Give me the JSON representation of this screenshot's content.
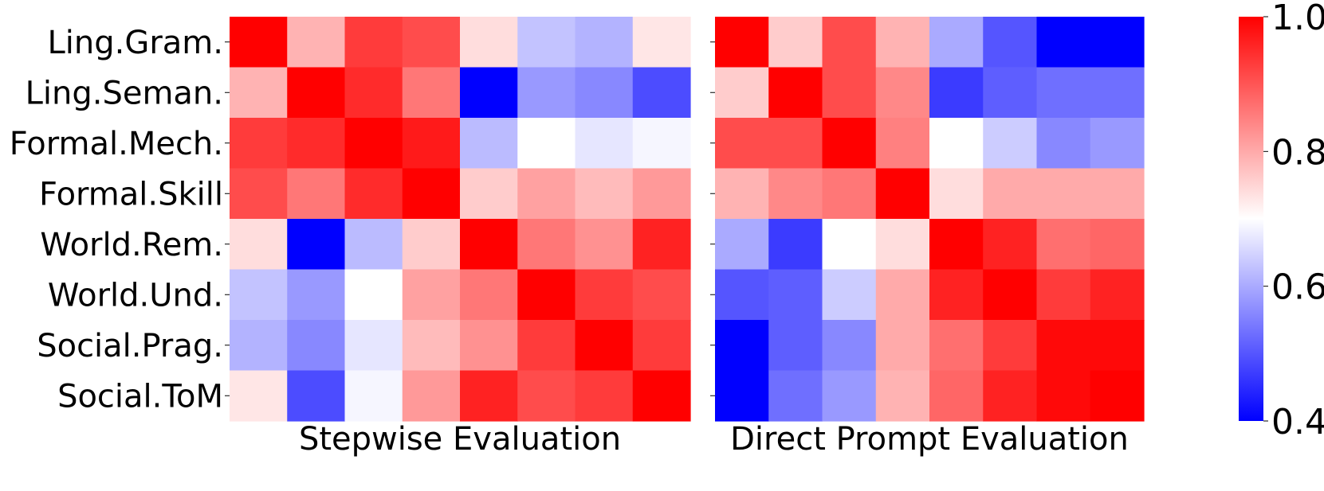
{
  "chart_data": [
    {
      "type": "heatmap",
      "title": "",
      "xlabel": "Stepwise Evaluation",
      "ylabel": "",
      "row_labels": [
        "Ling.Gram.",
        "Ling.Seman.",
        "Formal.Mech.",
        "Formal.Skill",
        "World.Rem.",
        "World.Und.",
        "Social.Prag.",
        "Social.ToM"
      ],
      "col_labels": [],
      "colormap": "bwr",
      "vmin": 0.4,
      "vmax": 1.0,
      "values": [
        [
          1.0,
          0.79,
          0.93,
          0.91,
          0.74,
          0.63,
          0.61,
          0.73
        ],
        [
          0.79,
          1.0,
          0.95,
          0.86,
          0.4,
          0.58,
          0.56,
          0.49
        ],
        [
          0.93,
          0.95,
          1.0,
          0.97,
          0.62,
          0.7,
          0.67,
          0.69
        ],
        [
          0.91,
          0.86,
          0.95,
          1.0,
          0.76,
          0.81,
          0.78,
          0.82
        ],
        [
          0.74,
          0.4,
          0.62,
          0.76,
          1.0,
          0.86,
          0.83,
          0.96
        ],
        [
          0.63,
          0.58,
          0.7,
          0.81,
          0.86,
          1.0,
          0.93,
          0.91
        ],
        [
          0.61,
          0.56,
          0.67,
          0.78,
          0.83,
          0.93,
          1.0,
          0.93
        ],
        [
          0.73,
          0.49,
          0.69,
          0.82,
          0.96,
          0.91,
          0.93,
          1.0
        ]
      ]
    },
    {
      "type": "heatmap",
      "title": "",
      "xlabel": "Direct Prompt Evaluation",
      "ylabel": "",
      "row_labels": [
        "Ling.Gram.",
        "Ling.Seman.",
        "Formal.Mech.",
        "Formal.Skill",
        "World.Rem.",
        "World.Und.",
        "Social.Prag.",
        "Social.ToM"
      ],
      "col_labels": [],
      "colormap": "bwr",
      "vmin": 0.4,
      "vmax": 1.0,
      "values": [
        [
          1.0,
          0.76,
          0.91,
          0.79,
          0.6,
          0.5,
          0.4,
          0.4
        ],
        [
          0.76,
          1.0,
          0.91,
          0.84,
          0.47,
          0.51,
          0.53,
          0.53
        ],
        [
          0.91,
          0.91,
          1.0,
          0.85,
          0.7,
          0.64,
          0.56,
          0.58
        ],
        [
          0.79,
          0.84,
          0.86,
          1.0,
          0.74,
          0.8,
          0.8,
          0.8
        ],
        [
          0.6,
          0.47,
          0.7,
          0.74,
          1.0,
          0.96,
          0.87,
          0.88
        ],
        [
          0.5,
          0.51,
          0.64,
          0.8,
          0.96,
          1.0,
          0.93,
          0.96
        ],
        [
          0.4,
          0.51,
          0.56,
          0.8,
          0.87,
          0.93,
          0.99,
          0.99
        ],
        [
          0.4,
          0.53,
          0.58,
          0.79,
          0.88,
          0.96,
          0.99,
          1.0
        ]
      ]
    }
  ],
  "colorbar": {
    "min": 0.4,
    "max": 1.0,
    "ticks": [
      0.4,
      0.6,
      0.8,
      1.0
    ],
    "tick_labels": [
      "0.4",
      "0.6",
      "0.8",
      "1.0"
    ],
    "colormap": "bwr",
    "colors": {
      "low": "#0000ff",
      "mid": "#ffffff",
      "high": "#ff0000"
    }
  }
}
